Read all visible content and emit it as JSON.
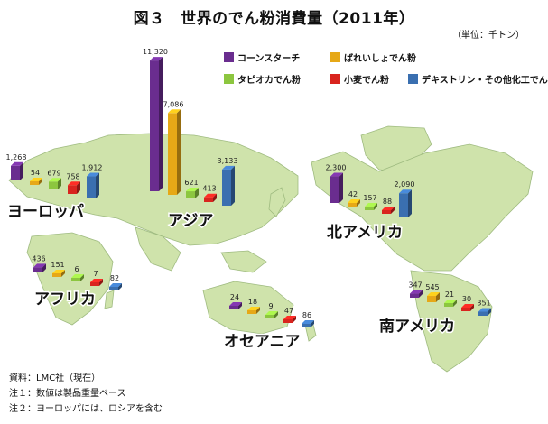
{
  "title": "図３　世界のでん粉消費量（2011年）",
  "unit": "（単位：千トン）",
  "notes": [
    "資料：LMC社（現在）",
    "注１：数値は製品重量ベース",
    "注２：ヨーロッパには、ロシアを含む"
  ],
  "chart_data": {
    "type": "bar",
    "title": "図３　世界のでん粉消費量（2011年）",
    "unit": "千トン",
    "series_names": [
      "コーンスターチ",
      "ばれいしょでん粉",
      "タピオカでん粉",
      "小麦でん粉",
      "デキストリン・その他化工でん粉"
    ],
    "colors": [
      "#6a2d8f",
      "#e6a817",
      "#8cc63f",
      "#d9241e",
      "#3a6fb0"
    ],
    "regions": [
      {
        "name": "ヨーロッパ",
        "values": [
          1268,
          54,
          679,
          758,
          1912
        ],
        "labels": [
          "1,268",
          "54",
          "679",
          "758",
          "1,912"
        ]
      },
      {
        "name": "アジア",
        "values": [
          11320,
          7086,
          621,
          413,
          3133
        ],
        "labels": [
          "11,320",
          "7,086",
          "621",
          "413",
          "3,133"
        ]
      },
      {
        "name": "北アメリカ",
        "values": [
          2300,
          42,
          157,
          88,
          2090
        ],
        "labels": [
          "2,300",
          "42",
          "157",
          "88",
          "2,090"
        ]
      },
      {
        "name": "アフリカ",
        "values": [
          436,
          151,
          6,
          7,
          82
        ],
        "labels": [
          "436",
          "151",
          "6",
          "7",
          "82"
        ]
      },
      {
        "name": "オセアニア",
        "values": [
          24,
          18,
          9,
          47,
          86
        ],
        "labels": [
          "24",
          "18",
          "9",
          "47",
          "86"
        ]
      },
      {
        "name": "南アメリカ",
        "values": [
          347,
          545,
          21,
          30,
          351
        ],
        "labels": [
          "347",
          "545",
          "21",
          "30",
          "351"
        ]
      }
    ]
  }
}
